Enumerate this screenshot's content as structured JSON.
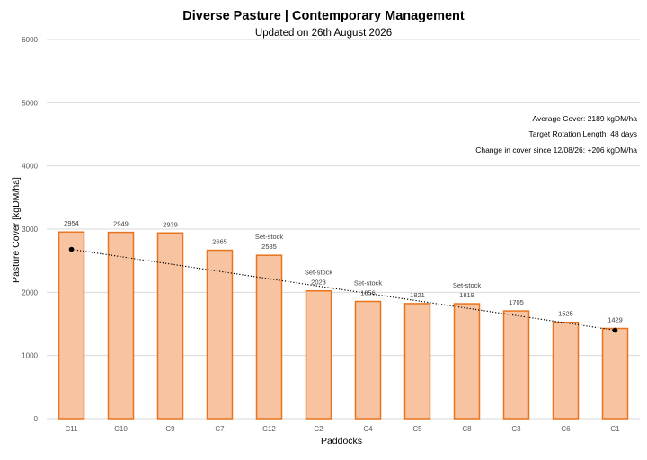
{
  "chart_data": {
    "type": "bar",
    "title": "Diverse Pasture | Contemporary Management",
    "subtitle": "Updated on 26th August 2026",
    "xlabel": "Paddocks",
    "ylabel": "Pasture Cover [kgDM/ha]",
    "ylim": [
      0,
      6000
    ],
    "yticks": [
      "0",
      "1000",
      "2000",
      "3000",
      "4000",
      "5000",
      "6000"
    ],
    "grid": true,
    "categories": [
      "C11",
      "C10",
      "C9",
      "C7",
      "C12",
      "C2",
      "C4",
      "C5",
      "C8",
      "C3",
      "C6",
      "C1"
    ],
    "values": [
      2954,
      2949,
      2939,
      2665,
      2585,
      2023,
      1856,
      1821,
      1819,
      1705,
      1525,
      1429
    ],
    "value_labels": [
      "2954",
      "2949",
      "2939",
      "2665",
      "2585",
      "2023",
      "1856",
      "1821",
      "1819",
      "1705",
      "1525",
      "1429"
    ],
    "status_labels": [
      "",
      "",
      "",
      "",
      "Set-stock",
      "Set-stock",
      "Set-stock",
      "",
      "Set-stock",
      "",
      "",
      ""
    ],
    "trend_line": {
      "start": {
        "category": "C11",
        "value": 2680
      },
      "end": {
        "category": "C1",
        "value": 1400
      }
    },
    "annotations": [
      "Average Cover: 2189 kgDM/ha",
      "Target Rotation Length: 48 days",
      "Change in cover since 12/08/26: +206 kgDM/ha"
    ],
    "colors": {
      "bar_fill": "#F8C3A0",
      "bar_stroke": "#E8741E",
      "grid": "#D9D9D9",
      "axis_text": "#595959",
      "trend": "#000000"
    }
  }
}
